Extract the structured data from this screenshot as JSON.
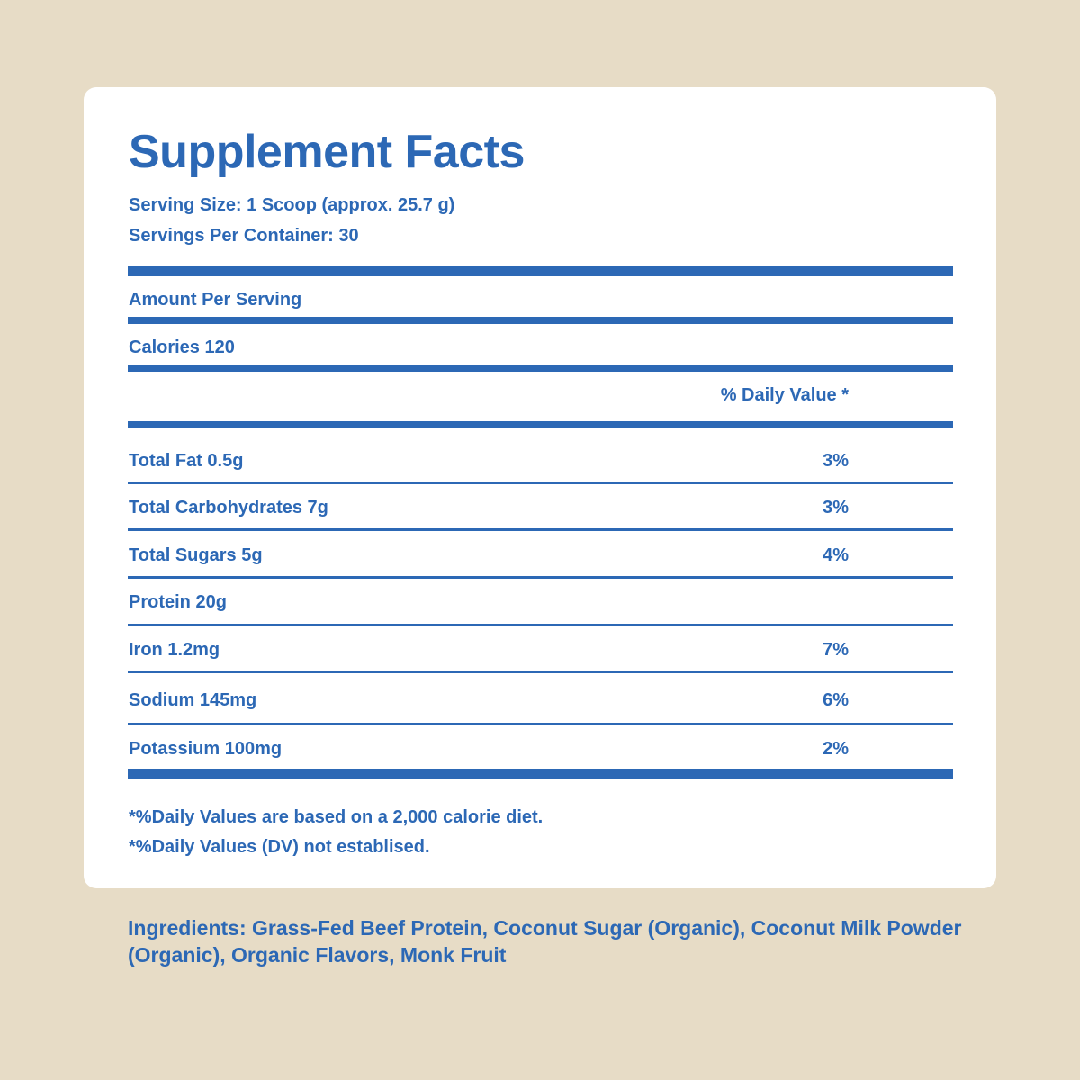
{
  "title": "Supplement Facts",
  "serving_size": "Serving Size: 1 Scoop (approx. 25.7 g)",
  "servings_per_container": "Servings Per Container: 30",
  "amount_per_serving": "Amount Per Serving",
  "calories": "Calories 120",
  "daily_value_header": "% Daily Value *",
  "nutrients": [
    {
      "label": "Total Fat 0.5g",
      "dv": "3%"
    },
    {
      "label": "Total Carbohydrates 7g",
      "dv": "3%"
    },
    {
      "label": "Total Sugars 5g",
      "dv": "4%"
    },
    {
      "label": "Protein 20g",
      "dv": ""
    },
    {
      "label": "Iron 1.2mg",
      "dv": "7%"
    },
    {
      "label": "Sodium 145mg",
      "dv": "6%"
    },
    {
      "label": "Potassium 100mg",
      "dv": "2%"
    }
  ],
  "footnotes": [
    "*%Daily Values are based on a 2,000 calorie diet.",
    "*%Daily Values (DV) not establised."
  ],
  "ingredients": "Ingredients: Grass-Fed Beef Protein, Coconut Sugar (Organic), Coconut Milk Powder (Organic), Organic Flavors, Monk Fruit",
  "colors": {
    "background": "#e7dcc6",
    "card": "#ffffff",
    "accent": "#2c68b5"
  }
}
